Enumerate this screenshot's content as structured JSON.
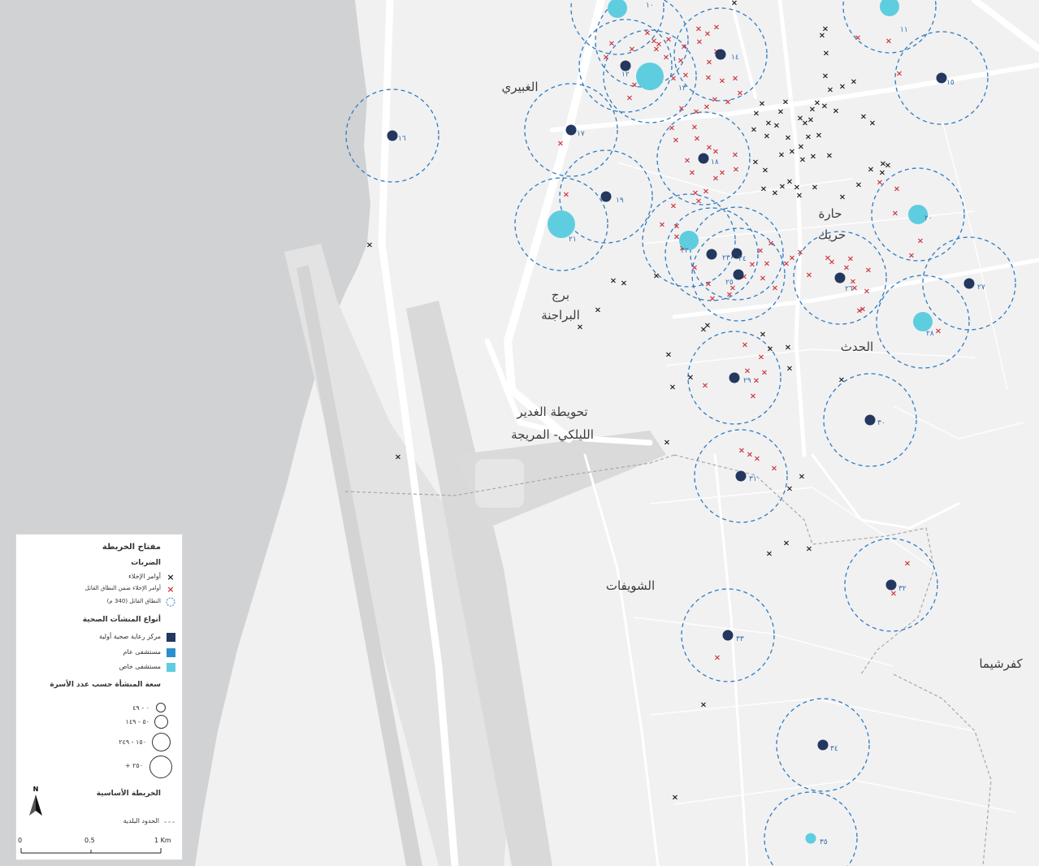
{
  "colors": {
    "sea": "#d1d2d4",
    "land": "#f1f1f2",
    "road": "#ffffff",
    "airport": "#dcdcdc",
    "buffer": "#2f7bbf",
    "strike_outside": "#222222",
    "strike_inside": "#d0343f",
    "primary_care": "#23375f",
    "public_hospital": "#2a8fcf",
    "private_hospital": "#5fcde0",
    "boundary": "#999999"
  },
  "places": [
    {
      "id": "ghobeiry",
      "name": "الغبيري"
    },
    {
      "id": "haret-hreik-1",
      "name": "حارة"
    },
    {
      "id": "haret-hreik-2",
      "name": "حريك"
    },
    {
      "id": "burj-1",
      "name": "برج"
    },
    {
      "id": "burj-2",
      "name": "البراجنة"
    },
    {
      "id": "hadath",
      "name": "الحدث"
    },
    {
      "id": "tahwita",
      "name": "تحويطة الغدير"
    },
    {
      "id": "laylaki",
      "name": "الليلكي- المريجة"
    },
    {
      "id": "choueifat",
      "name": "الشويفات"
    },
    {
      "id": "kfarchima",
      "name": "كفرشيما"
    }
  ],
  "facilities": [
    {
      "id": "f10a",
      "type": "private_hospital",
      "capacity": "50-149",
      "label": "١٠"
    },
    {
      "id": "f11",
      "type": "private_hospital",
      "capacity": "50-149",
      "label": "١١"
    },
    {
      "id": "f12",
      "type": "primary_care",
      "capacity": "0-49",
      "label": "١٢"
    },
    {
      "id": "f13",
      "type": "private_hospital",
      "capacity": "250+",
      "label": "١٣"
    },
    {
      "id": "f14",
      "type": "primary_care",
      "capacity": "0-49",
      "label": "١٤"
    },
    {
      "id": "f15",
      "type": "primary_care",
      "capacity": "0-49",
      "label": "١٥"
    },
    {
      "id": "f16",
      "type": "primary_care",
      "capacity": "0-49",
      "label": "١٦"
    },
    {
      "id": "f17",
      "type": "primary_care",
      "capacity": "0-49",
      "label": "١٧"
    },
    {
      "id": "f18",
      "type": "primary_care",
      "capacity": "0-49",
      "label": "١٨"
    },
    {
      "id": "f19",
      "type": "primary_care",
      "capacity": "0-49",
      "label": "١٩"
    },
    {
      "id": "f20",
      "type": "private_hospital",
      "capacity": "50-149",
      "label": "٢٠"
    },
    {
      "id": "f21",
      "type": "private_hospital",
      "capacity": "250+",
      "label": "٢١"
    },
    {
      "id": "f22",
      "type": "private_hospital",
      "capacity": "50-149",
      "label": "٢٢"
    },
    {
      "id": "f23",
      "type": "primary_care",
      "capacity": "0-49",
      "label": "٢٣"
    },
    {
      "id": "f24",
      "type": "primary_care",
      "capacity": "0-49",
      "label": "٢٤"
    },
    {
      "id": "f25",
      "type": "primary_care",
      "capacity": "0-49",
      "label": "٢٥"
    },
    {
      "id": "f26",
      "type": "primary_care",
      "capacity": "0-49",
      "label": "٢٦"
    },
    {
      "id": "f27",
      "type": "primary_care",
      "capacity": "0-49",
      "label": "٢٧"
    },
    {
      "id": "f28",
      "type": "private_hospital",
      "capacity": "150-249",
      "label": "٢٨"
    },
    {
      "id": "f29",
      "type": "primary_care",
      "capacity": "0-49",
      "label": "٢٩"
    },
    {
      "id": "f30",
      "type": "primary_care",
      "capacity": "0-49",
      "label": "٣٠"
    },
    {
      "id": "f31",
      "type": "primary_care",
      "capacity": "0-49",
      "label": "٣١"
    },
    {
      "id": "f32",
      "type": "primary_care",
      "capacity": "0-49",
      "label": "٣٢"
    },
    {
      "id": "f33",
      "type": "primary_care",
      "capacity": "0-49",
      "label": "٣٣"
    },
    {
      "id": "f34",
      "type": "primary_care",
      "capacity": "0-49",
      "label": "٣٤"
    },
    {
      "id": "f35",
      "type": "private_hospital",
      "capacity": "0-49",
      "label": "٣٥"
    }
  ],
  "legend": {
    "title": "مفتاح الخريطة",
    "strikes_heading": "الضربات",
    "strike_evac": "أوامر الإخلاء",
    "strike_evac_in_range": "أوامر الإخلاء ضمن النطاق القاتل",
    "lethal_range": "النطاق القاتل (340 م)",
    "facility_types_heading": "أنواع المنشآت الصحية",
    "primary_care": "مركز رعاية صحية أولية",
    "public_hospital": "مستشفى عام",
    "private_hospital": "مستشفى خاص",
    "capacity_heading": "سعة المنشأة حسب عدد الأسرة",
    "cap_1": "٠ - ٤٩",
    "cap_2": "٥٠ - ١٤٩",
    "cap_3": "١٥٠ - ٢٤٩",
    "cap_4": "٢٥٠ +",
    "basemap_heading": "الخريطة الأساسية",
    "municipal_boundary": "الحدود البلدية"
  },
  "north_label": "N",
  "scale": {
    "start": "0",
    "mid": "0.5",
    "end": "1 Km"
  }
}
